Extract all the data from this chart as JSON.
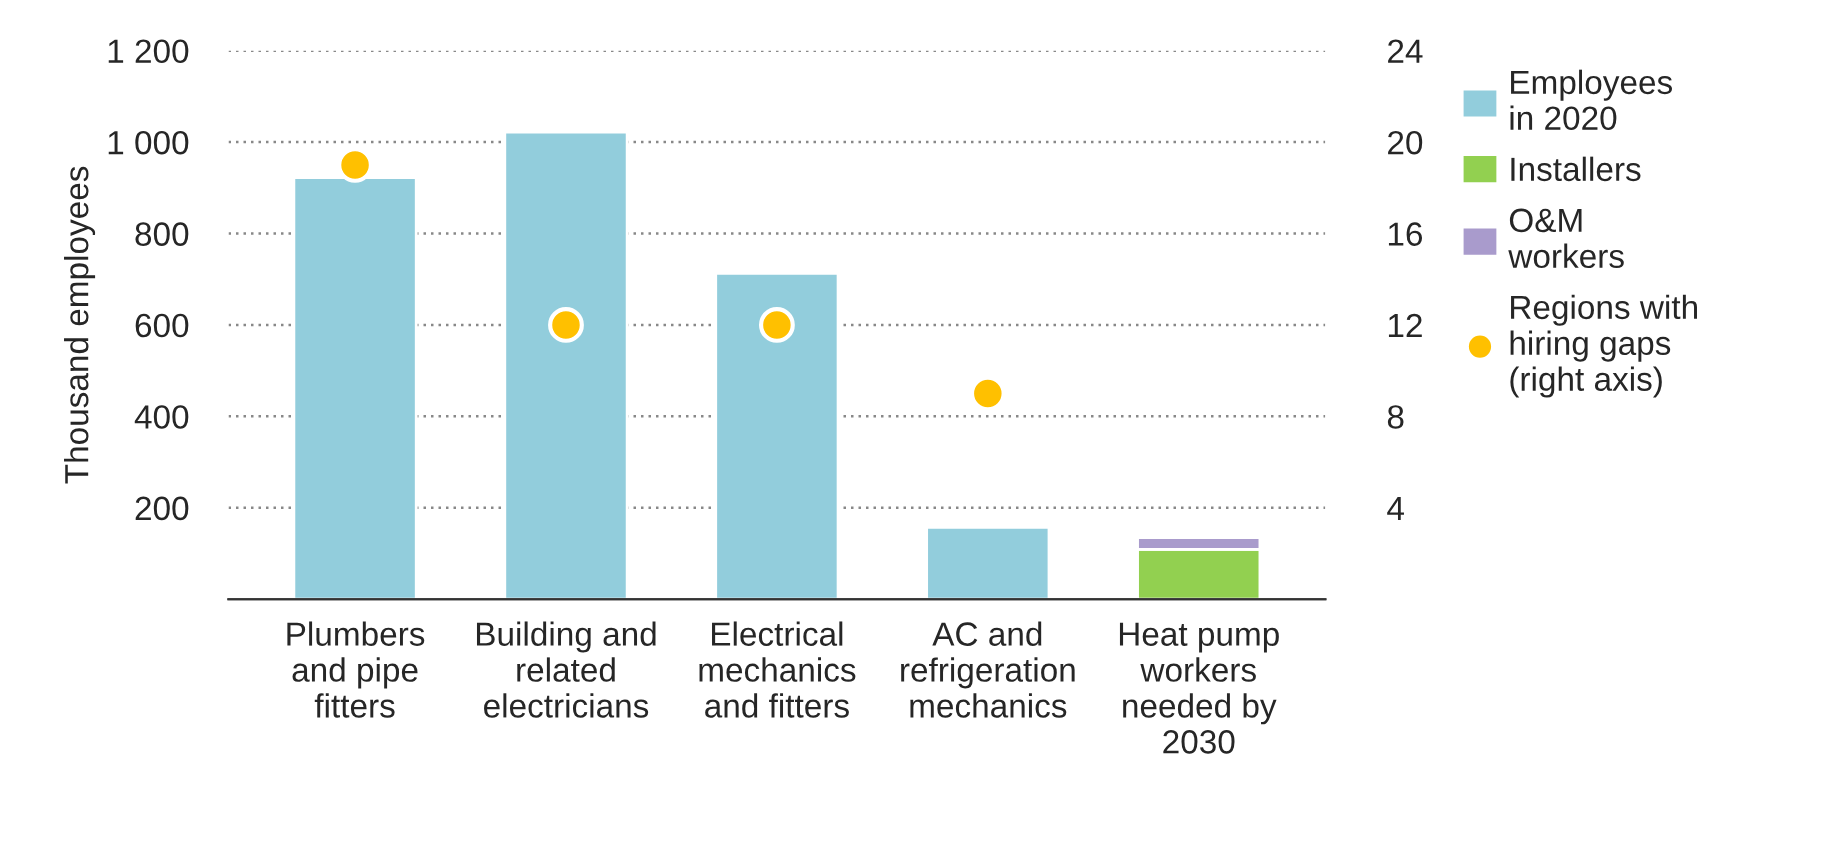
{
  "chart_data": {
    "type": "bar",
    "stacked": true,
    "ylabel": "Thousand employees",
    "categories": [
      "Plumbers\nand pipe\nfitters",
      "Building and\nrelated\nelectricians",
      "Electrical\nmechanics\nand fitters",
      "AC and\nrefrigeration\nmechanics",
      "Heat pump\nworkers\nneeded by\n2030"
    ],
    "series": [
      {
        "name": "Employees\nin 2020",
        "color": "#92cddc",
        "values": [
          922,
          1022,
          713,
          157,
          null
        ]
      },
      {
        "name": "Installers",
        "color": "#92d050",
        "values": [
          null,
          null,
          null,
          null,
          109
        ]
      },
      {
        "name": "O&M\nworkers",
        "color": "#a99bcc",
        "values": [
          null,
          null,
          null,
          null,
          26
        ]
      },
      {
        "name": "Regions with\nhiring gaps\n(right axis)",
        "type": "scatter",
        "axis": "y2",
        "color": "#ffc000",
        "marker": "circle",
        "values": [
          19,
          12,
          12,
          9,
          null
        ]
      }
    ],
    "ylim": [
      0,
      1200
    ],
    "yticks": [
      200,
      400,
      600,
      800,
      {
        "value": 1000,
        "label": "1 000"
      },
      {
        "value": 1200,
        "label": "1 200"
      }
    ],
    "y2lim": [
      0,
      24
    ],
    "y2ticks": [
      4,
      8,
      12,
      16,
      20,
      24
    ],
    "grid": "y",
    "legend": "right"
  }
}
